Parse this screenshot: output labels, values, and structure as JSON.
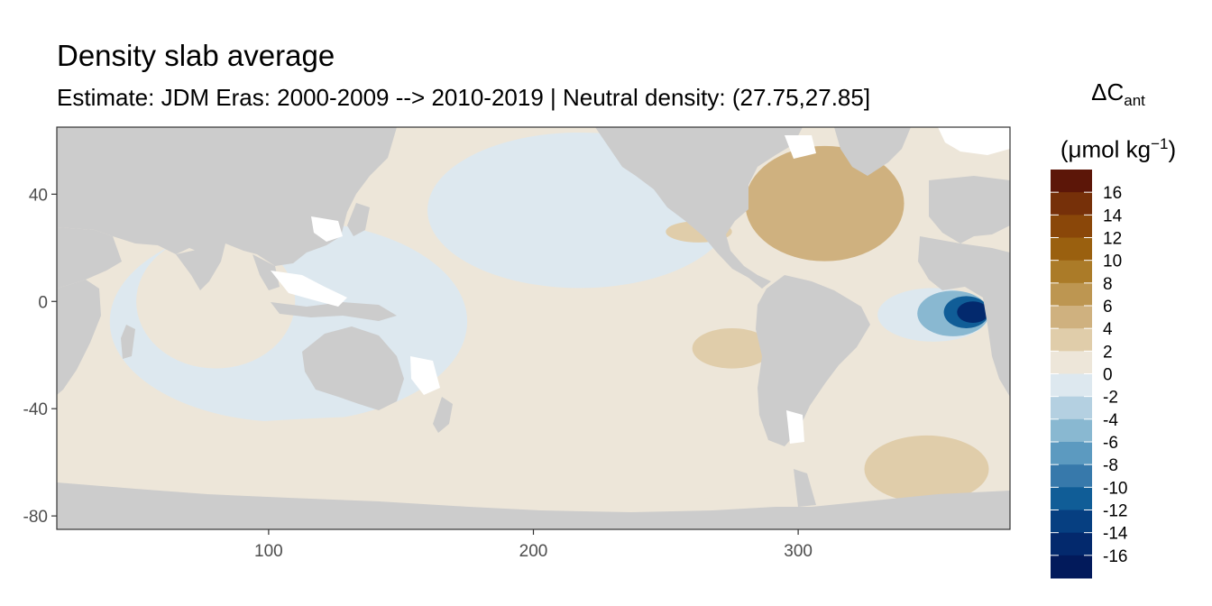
{
  "chart_data": {
    "type": "heatmap",
    "title": "Density slab average",
    "subtitle": "Estimate: JDM Eras: 2000-2009 --> 2010-2019 | Neutral density: (27.75,27.85]",
    "xlabel": "",
    "ylabel": "",
    "xlim": [
      20,
      380
    ],
    "ylim": [
      -85,
      65
    ],
    "x_ticks": [
      100,
      200,
      300
    ],
    "y_ticks": [
      40,
      0,
      -40,
      -80
    ],
    "land_color": "#cccccc",
    "missing_color": "#ffffff",
    "grid": false,
    "legend": {
      "placement": "right",
      "title_main": "ΔC",
      "title_sub": "ant",
      "unit_main": "(μmol kg",
      "unit_sup": "−1",
      "unit_close": ")",
      "breaks": [
        -18,
        -16,
        -14,
        -12,
        -10,
        -8,
        -6,
        -4,
        -2,
        0,
        2,
        4,
        6,
        8,
        10,
        12,
        14,
        16,
        18
      ],
      "labels": [
        16,
        14,
        12,
        10,
        8,
        6,
        4,
        2,
        0,
        -2,
        -4,
        -6,
        -8,
        -10,
        -12,
        -14,
        -16
      ],
      "colors_top_to_bottom": [
        "#5c1608",
        "#763009",
        "#8a4709",
        "#9a600f",
        "#ab7b28",
        "#bd9651",
        "#cfb17f",
        "#e0cdaa",
        "#ede6d9",
        "#dde8ef",
        "#b4d0e1",
        "#89b8d1",
        "#5c9ac0",
        "#3779ab",
        "#105d97",
        "#063f81",
        "#03296d",
        "#021a5b"
      ]
    },
    "regions_note_free": true,
    "regions": [
      {
        "value": 0.8,
        "lon": [
          20,
          380
        ],
        "lat": [
          -85,
          65
        ]
      },
      {
        "value": -0.8,
        "lon": [
          160,
          275
        ],
        "lat": [
          5,
          63
        ]
      },
      {
        "value": -0.8,
        "lon": [
          40,
          175
        ],
        "lat": [
          -45,
          30
        ]
      },
      {
        "value": 1.2,
        "lon": [
          50,
          110
        ],
        "lat": [
          -25,
          25
        ]
      },
      {
        "value": 1.2,
        "lon": [
          20,
          360
        ],
        "lat": [
          -75,
          -42
        ]
      },
      {
        "value": 3.5,
        "lon": [
          325,
          372
        ],
        "lat": [
          -75,
          -50
        ]
      },
      {
        "value": 3.0,
        "lon": [
          260,
          290
        ],
        "lat": [
          -25,
          -10
        ]
      },
      {
        "value": 3.0,
        "lon": [
          250,
          275
        ],
        "lat": [
          22,
          30
        ]
      },
      {
        "value": 5.5,
        "lon": [
          280,
          340
        ],
        "lat": [
          15,
          58
        ]
      },
      {
        "value": -2.0,
        "lon": [
          330,
          372
        ],
        "lat": [
          -15,
          5
        ]
      },
      {
        "value": -6.0,
        "lon": [
          345,
          372
        ],
        "lat": [
          -13,
          4
        ]
      },
      {
        "value": -12.0,
        "lon": [
          355,
          372
        ],
        "lat": [
          -10,
          2
        ]
      },
      {
        "value": -16.0,
        "lon": [
          360,
          372
        ],
        "lat": [
          -8,
          0
        ]
      }
    ]
  }
}
